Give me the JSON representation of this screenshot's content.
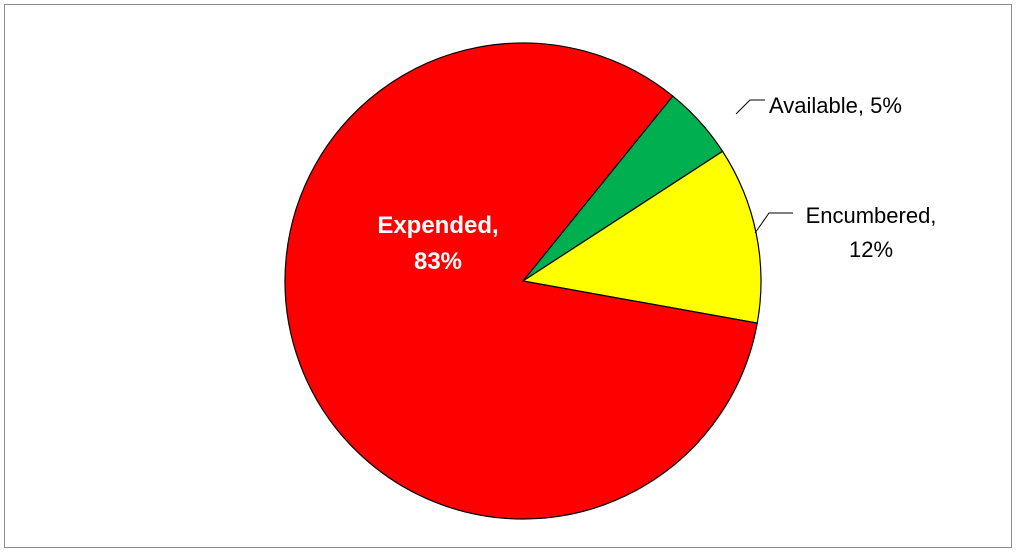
{
  "chart_data": {
    "type": "pie",
    "slices": [
      {
        "name": "Available",
        "value": 5,
        "color": "#00B050",
        "label_line1": "Available, 5%",
        "label_line2": ""
      },
      {
        "name": "Encumbered",
        "value": 12,
        "color": "#FFFF00",
        "label_line1": "Encumbered,",
        "label_line2": "12%"
      },
      {
        "name": "Expended",
        "value": 83,
        "color": "#FF0000",
        "label_line1": "Expended,",
        "label_line2": "83%"
      }
    ]
  }
}
